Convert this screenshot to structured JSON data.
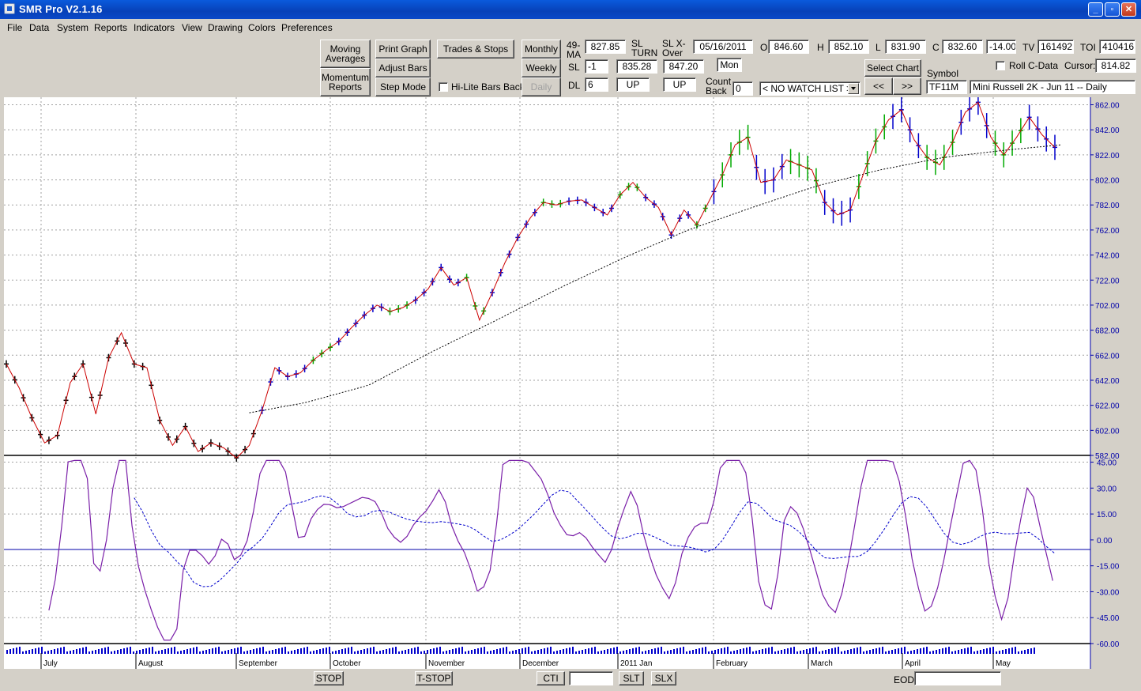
{
  "window": {
    "title": "SMR Pro V2.1.16"
  },
  "menu": [
    "File",
    "Data",
    "System",
    "Reports",
    "Indicators",
    "View",
    "Drawing",
    "Colors",
    "Preferences"
  ],
  "buttons": {
    "moving_averages": "Moving Averages",
    "momentum_reports": "Momentum Reports",
    "print_graph": "Print Graph",
    "adjust_bars": "Adjust Bars",
    "step_mode": "Step Mode",
    "trades_stops": "Trades & Stops",
    "hilite_bars_back": "Hi-Lite Bars Back",
    "monthly": "Monthly",
    "weekly": "Weekly",
    "daily": "Daily",
    "select_chart": "Select Chart",
    "prev": "<<",
    "next": ">>",
    "roll_cdata": "Roll C-Data"
  },
  "fields": {
    "ma_label": "49-MA",
    "ma_value": "827.85",
    "sl_label": "SL",
    "sl_value": "-1",
    "dl_label": "DL",
    "dl_value": "6",
    "slturn_label": "SL TURN",
    "slturn_value": "835.28",
    "slturn_dir": "UP",
    "slxover_label": "SL X-Over",
    "slxover_value": "847.20",
    "slxover_dir": "UP",
    "date": "05/16/2011",
    "day": "Mon",
    "countback_label": "Count Back",
    "countback_value": "0",
    "watchlist": "< NO WATCH LIST >",
    "o_label": "O",
    "o_value": "846.60",
    "h_label": "H",
    "h_value": "852.10",
    "l_label": "L",
    "l_value": "831.90",
    "c_label": "C",
    "c_value": "832.60",
    "change": "-14.00",
    "tv_label": "TV",
    "tv_value": "161492",
    "toi_label": "TOI",
    "toi_value": "410416",
    "cursor_label": "Cursor:",
    "cursor_value": "814.82",
    "symbol_label": "Symbol",
    "symbol": "TF11M",
    "description": "Mini Russell 2K - Jun 11 -- Daily"
  },
  "chart_data": [
    {
      "type": "line",
      "price_axis": [
        "862.00",
        "842.00",
        "822.00",
        "802.00",
        "782.00",
        "762.00",
        "742.00",
        "722.00",
        "702.00",
        "682.00",
        "662.00",
        "642.00",
        "622.00",
        "602.00",
        "582.00"
      ],
      "ylim": [
        582,
        868
      ],
      "months": [
        "July",
        "August",
        "September",
        "October",
        "November",
        "December",
        "2011 Jan",
        "February",
        "March",
        "April",
        "May"
      ],
      "series": [],
      "price_path": [
        [
          0,
          655
        ],
        [
          6,
          636
        ],
        [
          12,
          612
        ],
        [
          18,
          592
        ],
        [
          24,
          598
        ],
        [
          30,
          640
        ],
        [
          36,
          655
        ],
        [
          42,
          615
        ],
        [
          48,
          660
        ],
        [
          54,
          680
        ],
        [
          60,
          655
        ],
        [
          66,
          652
        ],
        [
          72,
          610
        ],
        [
          78,
          590
        ],
        [
          84,
          605
        ],
        [
          90,
          585
        ],
        [
          96,
          592
        ],
        [
          102,
          588
        ],
        [
          108,
          580
        ],
        [
          114,
          590
        ],
        [
          120,
          618
        ],
        [
          126,
          652
        ],
        [
          132,
          645
        ],
        [
          138,
          648
        ],
        [
          144,
          658
        ],
        [
          150,
          666
        ],
        [
          156,
          673
        ],
        [
          162,
          684
        ],
        [
          168,
          694
        ],
        [
          174,
          702
        ],
        [
          180,
          697
        ],
        [
          186,
          700
        ],
        [
          192,
          706
        ],
        [
          198,
          715
        ],
        [
          204,
          732
        ],
        [
          210,
          718
        ],
        [
          216,
          724
        ],
        [
          222,
          690
        ],
        [
          228,
          712
        ],
        [
          234,
          736
        ],
        [
          240,
          756
        ],
        [
          246,
          772
        ],
        [
          252,
          784
        ],
        [
          258,
          782
        ],
        [
          264,
          785
        ],
        [
          270,
          786
        ],
        [
          276,
          780
        ],
        [
          282,
          774
        ],
        [
          288,
          790
        ],
        [
          294,
          800
        ],
        [
          300,
          788
        ],
        [
          306,
          780
        ],
        [
          312,
          758
        ],
        [
          318,
          778
        ],
        [
          324,
          766
        ],
        [
          330,
          786
        ],
        [
          336,
          806
        ],
        [
          342,
          830
        ],
        [
          348,
          836
        ],
        [
          354,
          800
        ],
        [
          360,
          802
        ],
        [
          366,
          818
        ],
        [
          372,
          814
        ],
        [
          378,
          810
        ],
        [
          384,
          784
        ],
        [
          390,
          774
        ],
        [
          396,
          778
        ],
        [
          402,
          806
        ],
        [
          408,
          833
        ],
        [
          414,
          850
        ],
        [
          420,
          858
        ],
        [
          426,
          834
        ],
        [
          432,
          820
        ],
        [
          438,
          814
        ],
        [
          444,
          832
        ],
        [
          450,
          856
        ],
        [
          456,
          864
        ],
        [
          462,
          836
        ],
        [
          468,
          822
        ],
        [
          474,
          836
        ],
        [
          480,
          852
        ],
        [
          486,
          838
        ],
        [
          492,
          828
        ]
      ],
      "ma_path": [
        [
          114,
          616
        ],
        [
          140,
          624
        ],
        [
          170,
          638
        ],
        [
          200,
          665
        ],
        [
          230,
          690
        ],
        [
          260,
          716
        ],
        [
          290,
          740
        ],
        [
          320,
          762
        ],
        [
          350,
          780
        ],
        [
          380,
          797
        ],
        [
          410,
          810
        ],
        [
          440,
          820
        ],
        [
          470,
          826
        ],
        [
          495,
          830
        ]
      ]
    },
    {
      "type": "line",
      "osc_axis": [
        "45.00",
        "30.00",
        "15.00",
        "0.00",
        "-15.00",
        "-30.00",
        "-45.00",
        "-60.00"
      ],
      "ylim": [
        -60,
        48
      ],
      "series": []
    }
  ],
  "bottom": {
    "stop": "STOP",
    "tstop": "T-STOP",
    "cti": "CTI",
    "cti_value": "",
    "slt": "SLT",
    "slx": "SLX",
    "eod_label": "EOD",
    "eod_value": ""
  },
  "colors": {
    "price_line": "#cc0000",
    "osc_line": "#7a1fa8",
    "axis_blue": "#0000aa",
    "bar_blue": "#0000cc",
    "bar_green": "#00aa00"
  }
}
